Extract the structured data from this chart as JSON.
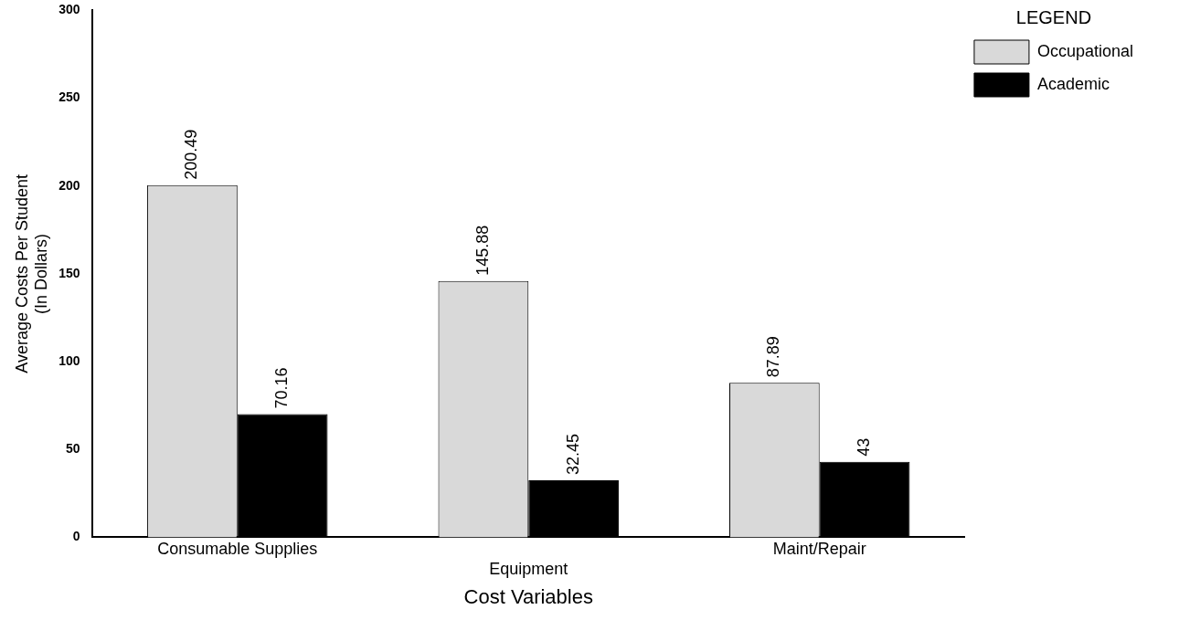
{
  "chart_data": {
    "type": "bar",
    "xlabel": "Cost Variables",
    "ylabel": "Average Costs Per Student\n(In Dollars)",
    "legend_title": "LEGEND",
    "categories": [
      "Consumable Supplies",
      "Equipment",
      "Maint/Repair"
    ],
    "series": [
      {
        "name": "Occupational",
        "color": "#d9d9d9",
        "values": [
          200.49,
          145.88,
          87.89
        ]
      },
      {
        "name": "Academic",
        "color": "#000000",
        "values": [
          70.16,
          32.45,
          43
        ]
      }
    ],
    "ylim": [
      0,
      300
    ],
    "yticks": [
      0,
      50,
      100,
      150,
      200,
      250,
      300
    ],
    "grid": false,
    "legend": "top right",
    "data_labels": true
  }
}
